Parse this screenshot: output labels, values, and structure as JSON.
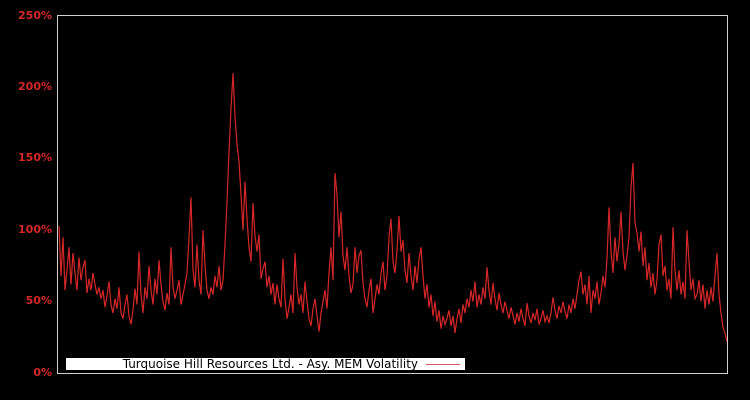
{
  "chart_data": {
    "type": "line",
    "title": "",
    "xlabel": "",
    "ylabel": "",
    "legend": "Turquoise Hill Resources Ltd. - Asy. MEM Volatility",
    "legend_position": "inside-bottom-left",
    "grid": false,
    "x_axis_tick_labels_visible": false,
    "ylim": [
      0,
      250
    ],
    "yticks": [
      0,
      50,
      100,
      150,
      200,
      250
    ],
    "ytick_labels": [
      "0%",
      "50%",
      "100%",
      "150%",
      "200%",
      "250%"
    ],
    "unit": "%",
    "colors": {
      "background": "#000000",
      "line": "#d62728",
      "ytick_label": "#d62728",
      "plot_border": "#cfcfcf",
      "legend_background": "#ffffff",
      "legend_text": "#000000"
    },
    "series": [
      {
        "name": "Turquoise Hill Resources Ltd. - Asy. MEM Volatility",
        "values_percent": [
          103,
          68,
          95,
          58,
          72,
          88,
          62,
          84,
          70,
          58,
          81,
          65,
          74,
          79,
          56,
          66,
          58,
          70,
          62,
          55,
          60,
          52,
          58,
          46,
          54,
          64,
          48,
          42,
          52,
          45,
          60,
          42,
          38,
          48,
          55,
          40,
          34,
          44,
          59,
          48,
          85,
          55,
          42,
          60,
          52,
          75,
          58,
          48,
          66,
          55,
          79,
          62,
          50,
          44,
          56,
          48,
          88,
          60,
          52,
          58,
          65,
          48,
          55,
          62,
          70,
          95,
          123,
          72,
          60,
          90,
          65,
          55,
          100,
          75,
          58,
          52,
          60,
          55,
          68,
          60,
          75,
          58,
          65,
          90,
          120,
          155,
          185,
          210,
          180,
          160,
          148,
          125,
          100,
          134,
          108,
          88,
          78,
          119,
          96,
          85,
          97,
          66,
          73,
          78,
          60,
          68,
          55,
          63,
          48,
          62,
          52,
          46,
          80,
          52,
          38,
          46,
          55,
          42,
          84,
          60,
          48,
          55,
          42,
          64,
          50,
          38,
          33,
          45,
          52,
          40,
          29,
          42,
          50,
          58,
          45,
          70,
          88,
          65,
          140,
          125,
          95,
          113,
          82,
          72,
          88,
          68,
          56,
          62,
          88,
          70,
          82,
          86,
          63,
          52,
          46,
          58,
          66,
          42,
          52,
          62,
          55,
          70,
          78,
          58,
          68,
          95,
          108,
          78,
          70,
          86,
          110,
          85,
          93,
          72,
          63,
          84,
          68,
          58,
          75,
          63,
          80,
          88,
          68,
          52,
          62,
          46,
          55,
          40,
          50,
          36,
          44,
          31,
          40,
          34,
          38,
          44,
          33,
          40,
          28,
          38,
          45,
          35,
          48,
          42,
          52,
          46,
          58,
          50,
          64,
          46,
          55,
          48,
          60,
          52,
          74,
          58,
          48,
          63,
          52,
          44,
          56,
          48,
          42,
          50,
          44,
          38,
          46,
          40,
          34,
          42,
          36,
          45,
          38,
          33,
          49,
          40,
          35,
          42,
          37,
          45,
          34,
          38,
          44,
          36,
          40,
          35,
          42,
          53,
          44,
          38,
          47,
          42,
          50,
          43,
          38,
          48,
          42,
          52,
          45,
          55,
          65,
          71,
          55,
          62,
          48,
          68,
          42,
          58,
          52,
          64,
          48,
          56,
          68,
          60,
          80,
          116,
          85,
          70,
          95,
          78,
          90,
          113,
          85,
          72,
          82,
          95,
          130,
          147,
          105,
          98,
          85,
          99,
          75,
          88,
          65,
          77,
          60,
          70,
          55,
          65,
          90,
          97,
          68,
          75,
          58,
          66,
          52,
          102,
          72,
          58,
          72,
          55,
          64,
          52,
          100,
          78,
          58,
          66,
          52,
          55,
          65,
          50,
          62,
          45,
          58,
          48,
          60,
          50,
          68,
          84,
          55,
          42,
          32,
          28,
          22
        ]
      }
    ]
  }
}
